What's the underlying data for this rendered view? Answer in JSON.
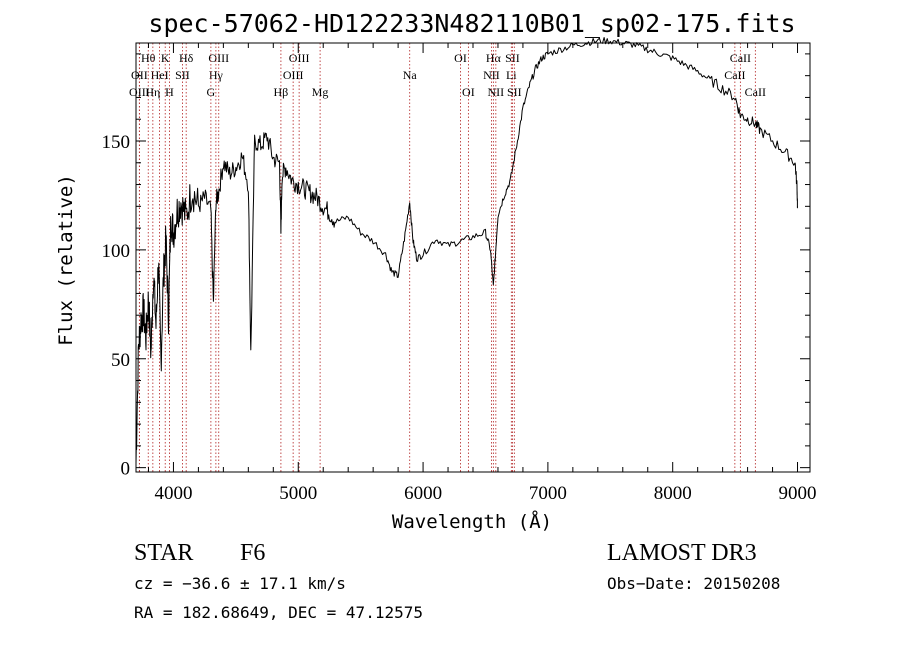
{
  "chart_data": {
    "type": "line",
    "title": "spec-57062-HD122233N482110B01_sp02-175.fits",
    "xlabel": "Wavelength (Å)",
    "ylabel": "Flux (relative)",
    "xlim": [
      3700,
      9100
    ],
    "ylim": [
      -2,
      195
    ],
    "x_ticks": [
      4000,
      5000,
      6000,
      7000,
      8000,
      9000
    ],
    "x_tick_labels": [
      "4000",
      "5000",
      "6000",
      "7000",
      "8000",
      "9000"
    ],
    "y_ticks": [
      0,
      50,
      100,
      150
    ],
    "y_tick_labels": [
      "0",
      "50",
      "100",
      "150"
    ],
    "series": [
      {
        "name": "flux",
        "x": [
          3700,
          3720,
          3740,
          3760,
          3780,
          3800,
          3820,
          3840,
          3860,
          3880,
          3900,
          3920,
          3940,
          3960,
          3980,
          4000,
          4030,
          4060,
          4100,
          4150,
          4200,
          4250,
          4300,
          4320,
          4340,
          4360,
          4400,
          4450,
          4500,
          4550,
          4600,
          4620,
          4650,
          4700,
          4750,
          4800,
          4850,
          4861,
          4870,
          4900,
          4950,
          5000,
          5050,
          5100,
          5150,
          5200,
          5250,
          5300,
          5400,
          5500,
          5600,
          5700,
          5750,
          5800,
          5850,
          5893,
          5920,
          5950,
          6000,
          6100,
          6200,
          6300,
          6400,
          6500,
          6540,
          6563,
          6580,
          6600,
          6650,
          6700,
          6750,
          6800,
          6850,
          6900,
          6950,
          7000,
          7100,
          7200,
          7300,
          7400,
          7500,
          7600,
          7700,
          7800,
          7900,
          8000,
          8100,
          8200,
          8300,
          8400,
          8500,
          8542,
          8600,
          8662,
          8700,
          8800,
          8900,
          8980,
          8995,
          9000
        ],
        "y": [
          2,
          55,
          68,
          72,
          60,
          78,
          52,
          90,
          65,
          95,
          48,
          88,
          104,
          70,
          115,
          108,
          118,
          122,
          115,
          128,
          120,
          124,
          118,
          75,
          122,
          126,
          140,
          135,
          138,
          143,
          130,
          52,
          150,
          148,
          152,
          142,
          140,
          108,
          134,
          138,
          132,
          130,
          128,
          126,
          124,
          120,
          117,
          113,
          115,
          108,
          104,
          98,
          90,
          88,
          105,
          122,
          104,
          96,
          98,
          105,
          102,
          104,
          106,
          108,
          100,
          83,
          98,
          116,
          125,
          132,
          148,
          165,
          175,
          183,
          188,
          190,
          192,
          194,
          195,
          196,
          196,
          195,
          194,
          192,
          190,
          188,
          185,
          182,
          178,
          174,
          170,
          162,
          160,
          158,
          155,
          150,
          145,
          140,
          130,
          120
        ]
      }
    ],
    "spectral_lines": [
      {
        "label": "Hθ",
        "wavelength": 3798,
        "row": 1
      },
      {
        "label": "OII",
        "wavelength": 3727,
        "row": 2
      },
      {
        "label": "OIII",
        "wavelength": 3727,
        "row": 3
      },
      {
        "label": "HeI",
        "wavelength": 3889,
        "row": 2
      },
      {
        "label": "Hη",
        "wavelength": 3835,
        "row": 3
      },
      {
        "label": "K",
        "wavelength": 3934,
        "row": 1
      },
      {
        "label": "H",
        "wavelength": 3968,
        "row": 3
      },
      {
        "label": "SII",
        "wavelength": 4072,
        "row": 2
      },
      {
        "label": "Hδ",
        "wavelength": 4102,
        "row": 1
      },
      {
        "label": "OIII",
        "wavelength": 4363,
        "row": 1
      },
      {
        "label": "Hγ",
        "wavelength": 4340,
        "row": 2
      },
      {
        "label": "G",
        "wavelength": 4300,
        "row": 3
      },
      {
        "label": "OIII",
        "wavelength": 5007,
        "row": 1
      },
      {
        "label": "OIII",
        "wavelength": 4959,
        "row": 2
      },
      {
        "label": "Hβ",
        "wavelength": 4861,
        "row": 3
      },
      {
        "label": "Mg",
        "wavelength": 5175,
        "row": 3
      },
      {
        "label": "Na",
        "wavelength": 5893,
        "row": 2
      },
      {
        "label": "OI",
        "wavelength": 6300,
        "row": 1
      },
      {
        "label": "OI",
        "wavelength": 6363,
        "row": 3
      },
      {
        "label": "Hα",
        "wavelength": 6563,
        "row": 1
      },
      {
        "label": "SII",
        "wavelength": 6716,
        "row": 1
      },
      {
        "label": "NII",
        "wavelength": 6548,
        "row": 2
      },
      {
        "label": "Li",
        "wavelength": 6707,
        "row": 2
      },
      {
        "label": "NII",
        "wavelength": 6583,
        "row": 3
      },
      {
        "label": "SII",
        "wavelength": 6731,
        "row": 3
      },
      {
        "label": "CaII",
        "wavelength": 8542,
        "row": 1
      },
      {
        "label": "CaII",
        "wavelength": 8498,
        "row": 2
      },
      {
        "label": "CaII",
        "wavelength": 8662,
        "row": 3
      }
    ]
  },
  "info": {
    "object_class": "STAR",
    "subclass": "F6",
    "survey": "LAMOST DR3",
    "cz": "cz = −36.6 ± 17.1 km/s",
    "obs_date": "Obs−Date: 20150208",
    "coords": "RA = 182.68649, DEC =  47.12575"
  },
  "colors": {
    "axis": "#000000",
    "spectrum": "#000000",
    "line_marker": "#b22222"
  }
}
